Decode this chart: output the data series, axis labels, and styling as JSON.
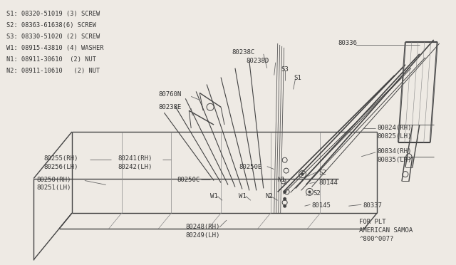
{
  "bg_color": "#eeeae4",
  "legend_lines": [
    "S1: 08320-51019 (3) SCREW",
    "S2: 08363-61638(6) SCREW",
    "S3: 08330-51020 (2) SCREW",
    "W1: 08915-43810 (4) WASHER",
    "N1: 08911-30610  (2) NUT",
    "N2: 08911-10610   (2) NUT"
  ],
  "footer1": "FOR PLT",
  "footer2": "AMERICAN SAMOA",
  "footer3": "^800^007?",
  "font_size": 6.5,
  "diagram_color": "#444444",
  "label_color": "#333333",
  "line_color": "#666666"
}
